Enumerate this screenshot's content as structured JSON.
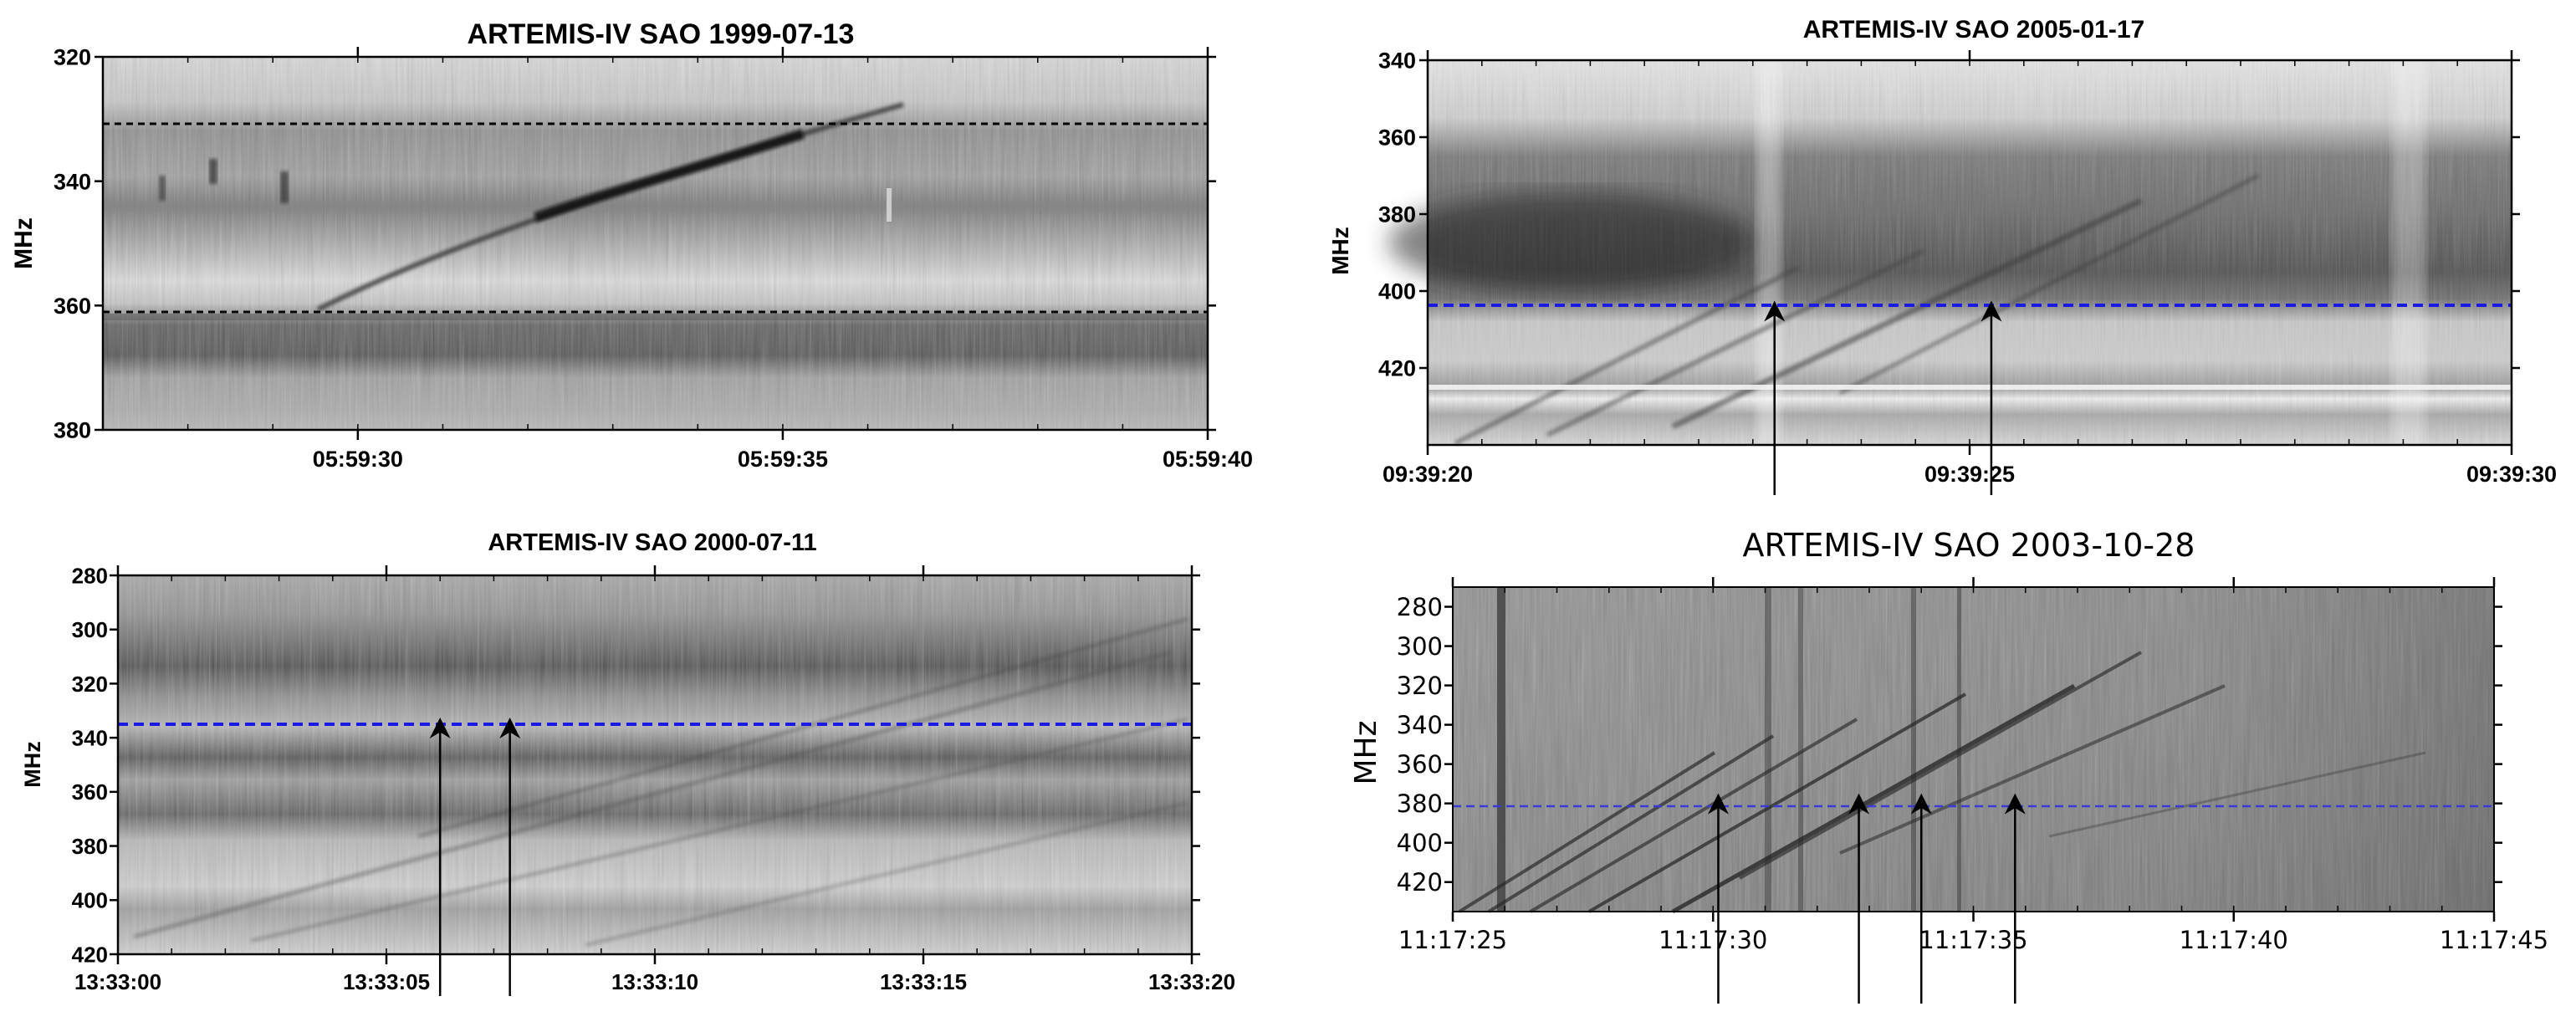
{
  "chart_data": [
    {
      "type": "heatmap",
      "id": "p1",
      "title": "ARTEMIS-IV  SAO 1999-07-13",
      "ylabel": "MHz",
      "xlabel": "",
      "ylim": [
        320,
        380
      ],
      "y_inverted": true,
      "y_ticks": [
        320,
        340,
        360,
        380
      ],
      "x_ticks": [
        "05:59:30",
        "05:59:35",
        "05:59:40"
      ],
      "reference_lines": [
        {
          "freq": 330,
          "color": "#000000"
        },
        {
          "freq": 360,
          "color": "#000000"
        }
      ],
      "arrows": [],
      "colormap": "grayscale",
      "grid": false
    },
    {
      "type": "heatmap",
      "id": "p2",
      "title": "ARTEMIS-IV  SAO 2005-01-17",
      "ylabel": "MHz",
      "xlabel": "",
      "ylim": [
        340,
        440
      ],
      "y_inverted": true,
      "y_ticks": [
        340,
        360,
        380,
        400,
        420
      ],
      "x_ticks": [
        "09:39:20",
        "09:39:25",
        "09:39:30"
      ],
      "reference_lines": [
        {
          "freq": 400,
          "color": "#1a1ae6"
        }
      ],
      "arrows": [
        {
          "time": "09:39:23.2"
        },
        {
          "time": "09:39:25.2"
        }
      ],
      "colormap": "grayscale",
      "grid": false
    },
    {
      "type": "heatmap",
      "id": "p3",
      "title": "ARTEMIS-IV  SAO 2000-07-11",
      "ylabel": "MHz",
      "xlabel": "",
      "ylim": [
        280,
        420
      ],
      "y_inverted": true,
      "y_ticks": [
        280,
        300,
        320,
        340,
        360,
        380,
        400,
        420
      ],
      "x_ticks": [
        "13:33:00",
        "13:33:05",
        "13:33:10",
        "13:33:15",
        "13:33:20"
      ],
      "reference_lines": [
        {
          "freq": 329,
          "color": "#1a1ae6"
        }
      ],
      "arrows": [
        {
          "time": "13:33:06.0"
        },
        {
          "time": "13:33:07.3"
        }
      ],
      "colormap": "grayscale",
      "grid": false
    },
    {
      "type": "heatmap",
      "id": "p4",
      "title": "ARTEMIS-IV  SAO 2003-10-28",
      "ylabel": "MHz",
      "xlabel": "",
      "ylim": [
        270,
        435
      ],
      "y_inverted": true,
      "y_ticks": [
        280,
        300,
        320,
        340,
        360,
        380,
        400,
        420
      ],
      "x_ticks": [
        "11:17:25",
        "11:17:30",
        "11:17:35",
        "11:17:40",
        "11:17:45"
      ],
      "reference_lines": [
        {
          "freq": 370,
          "color": "#3a3ad8"
        }
      ],
      "arrows": [
        {
          "time": "11:17:30.1"
        },
        {
          "time": "11:17:32.8"
        },
        {
          "time": "11:17:34.0"
        },
        {
          "time": "11:17:35.8"
        }
      ],
      "colormap": "grayscale",
      "grid": false
    }
  ]
}
